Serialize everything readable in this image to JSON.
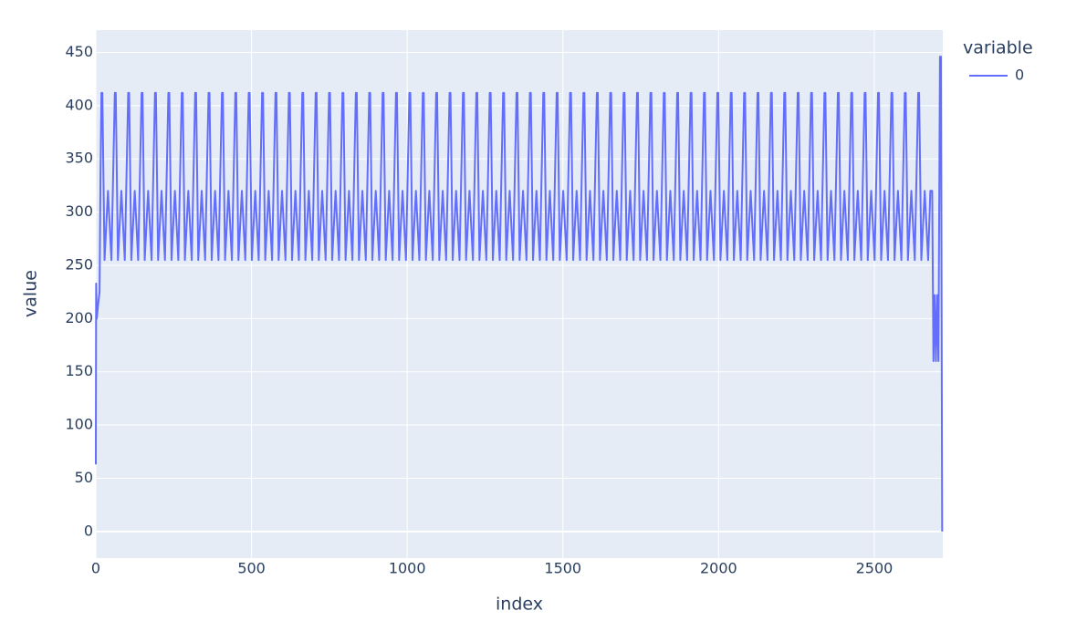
{
  "chart_data": {
    "type": "line",
    "x_label": "index",
    "y_label": "value",
    "xlim": [
      0,
      2720
    ],
    "ylim": [
      -25,
      471
    ],
    "xticks": [
      0,
      500,
      1000,
      1500,
      2000,
      2500
    ],
    "yticks": [
      0,
      50,
      100,
      150,
      200,
      250,
      300,
      350,
      400,
      450
    ],
    "grid": true,
    "legend_title": "variable",
    "legend_position": "right",
    "x": [
      0,
      1,
      3,
      8,
      12,
      15,
      18,
      21,
      28,
      39,
      50,
      61,
      64,
      71,
      82,
      93,
      104,
      107,
      114,
      125,
      136,
      147,
      150,
      157,
      168,
      179,
      190,
      193,
      200,
      211,
      222,
      233,
      236,
      243,
      254,
      265,
      276,
      279,
      286,
      297,
      308,
      319,
      322,
      329,
      340,
      351,
      362,
      365,
      372,
      383,
      394,
      405,
      408,
      415,
      426,
      437,
      448,
      451,
      458,
      469,
      480,
      491,
      494,
      501,
      512,
      523,
      534,
      537,
      544,
      555,
      566,
      577,
      580,
      587,
      598,
      609,
      620,
      623,
      630,
      641,
      652,
      663,
      666,
      673,
      684,
      695,
      706,
      709,
      716,
      727,
      738,
      749,
      752,
      759,
      770,
      781,
      792,
      795,
      802,
      813,
      824,
      835,
      838,
      845,
      856,
      867,
      878,
      881,
      888,
      899,
      910,
      921,
      924,
      931,
      942,
      953,
      964,
      967,
      974,
      985,
      996,
      1007,
      1010,
      1017,
      1028,
      1039,
      1050,
      1053,
      1060,
      1071,
      1082,
      1093,
      1096,
      1103,
      1114,
      1125,
      1136,
      1139,
      1146,
      1157,
      1168,
      1179,
      1182,
      1189,
      1200,
      1211,
      1222,
      1225,
      1232,
      1243,
      1254,
      1265,
      1268,
      1275,
      1286,
      1297,
      1308,
      1311,
      1318,
      1329,
      1340,
      1351,
      1354,
      1361,
      1372,
      1383,
      1394,
      1397,
      1404,
      1415,
      1426,
      1437,
      1440,
      1447,
      1458,
      1469,
      1480,
      1483,
      1490,
      1501,
      1512,
      1523,
      1526,
      1533,
      1544,
      1555,
      1566,
      1569,
      1576,
      1587,
      1598,
      1609,
      1612,
      1619,
      1630,
      1641,
      1652,
      1655,
      1662,
      1673,
      1684,
      1695,
      1698,
      1705,
      1716,
      1727,
      1738,
      1741,
      1748,
      1759,
      1770,
      1781,
      1784,
      1791,
      1802,
      1813,
      1824,
      1827,
      1834,
      1845,
      1856,
      1867,
      1870,
      1877,
      1888,
      1899,
      1910,
      1913,
      1920,
      1931,
      1942,
      1953,
      1956,
      1963,
      1974,
      1985,
      1996,
      1999,
      2006,
      2017,
      2028,
      2039,
      2042,
      2049,
      2060,
      2071,
      2082,
      2085,
      2092,
      2103,
      2114,
      2125,
      2128,
      2135,
      2146,
      2157,
      2168,
      2171,
      2178,
      2189,
      2200,
      2211,
      2214,
      2221,
      2232,
      2243,
      2254,
      2257,
      2264,
      2275,
      2286,
      2297,
      2300,
      2307,
      2318,
      2329,
      2340,
      2343,
      2350,
      2361,
      2372,
      2383,
      2386,
      2393,
      2404,
      2415,
      2426,
      2429,
      2436,
      2447,
      2458,
      2469,
      2472,
      2479,
      2490,
      2501,
      2512,
      2515,
      2522,
      2533,
      2544,
      2555,
      2558,
      2565,
      2576,
      2587,
      2598,
      2601,
      2608,
      2619,
      2630,
      2641,
      2644,
      2651,
      2662,
      2673,
      2680,
      2686,
      2690,
      2694,
      2698,
      2702,
      2706,
      2711,
      2714,
      2718
    ],
    "series": [
      {
        "name": "0",
        "color": "#636efa",
        "values": [
          63,
          233,
          200,
          215,
          225,
          335,
          412,
          412,
          255,
          320,
          255,
          412,
          412,
          255,
          320,
          255,
          412,
          412,
          255,
          320,
          255,
          412,
          412,
          255,
          320,
          255,
          412,
          412,
          255,
          320,
          255,
          412,
          412,
          255,
          320,
          255,
          412,
          412,
          255,
          320,
          255,
          412,
          412,
          255,
          320,
          255,
          412,
          412,
          255,
          320,
          255,
          412,
          412,
          255,
          320,
          255,
          412,
          412,
          255,
          320,
          255,
          412,
          412,
          255,
          320,
          255,
          412,
          412,
          255,
          320,
          255,
          412,
          412,
          255,
          320,
          255,
          412,
          412,
          255,
          320,
          255,
          412,
          412,
          255,
          320,
          255,
          412,
          412,
          255,
          320,
          255,
          412,
          412,
          255,
          320,
          255,
          412,
          412,
          255,
          320,
          255,
          412,
          412,
          255,
          320,
          255,
          412,
          412,
          255,
          320,
          255,
          412,
          412,
          255,
          320,
          255,
          412,
          412,
          255,
          320,
          255,
          412,
          412,
          255,
          320,
          255,
          412,
          412,
          255,
          320,
          255,
          412,
          412,
          255,
          320,
          255,
          412,
          412,
          255,
          320,
          255,
          412,
          412,
          255,
          320,
          255,
          412,
          412,
          255,
          320,
          255,
          412,
          412,
          255,
          320,
          255,
          412,
          412,
          255,
          320,
          255,
          412,
          412,
          255,
          320,
          255,
          412,
          412,
          255,
          320,
          255,
          412,
          412,
          255,
          320,
          255,
          412,
          412,
          255,
          320,
          255,
          412,
          412,
          255,
          320,
          255,
          412,
          412,
          255,
          320,
          255,
          412,
          412,
          255,
          320,
          255,
          412,
          412,
          255,
          320,
          255,
          412,
          412,
          255,
          320,
          255,
          412,
          412,
          255,
          320,
          255,
          412,
          412,
          255,
          320,
          255,
          412,
          412,
          255,
          320,
          255,
          412,
          412,
          255,
          320,
          255,
          412,
          412,
          255,
          320,
          255,
          412,
          412,
          255,
          320,
          255,
          412,
          412,
          255,
          320,
          255,
          412,
          412,
          255,
          320,
          255,
          412,
          412,
          255,
          320,
          255,
          412,
          412,
          255,
          320,
          255,
          412,
          412,
          255,
          320,
          255,
          412,
          412,
          255,
          320,
          255,
          412,
          412,
          255,
          320,
          255,
          412,
          412,
          255,
          320,
          255,
          412,
          412,
          255,
          320,
          255,
          412,
          412,
          255,
          320,
          255,
          412,
          412,
          255,
          320,
          255,
          412,
          412,
          255,
          320,
          255,
          412,
          412,
          255,
          320,
          255,
          412,
          412,
          255,
          320,
          255,
          412,
          412,
          255,
          320,
          255,
          412,
          412,
          255,
          320,
          255,
          320,
          320,
          160,
          222,
          160,
          222,
          160,
          446,
          446,
          0
        ]
      }
    ]
  }
}
